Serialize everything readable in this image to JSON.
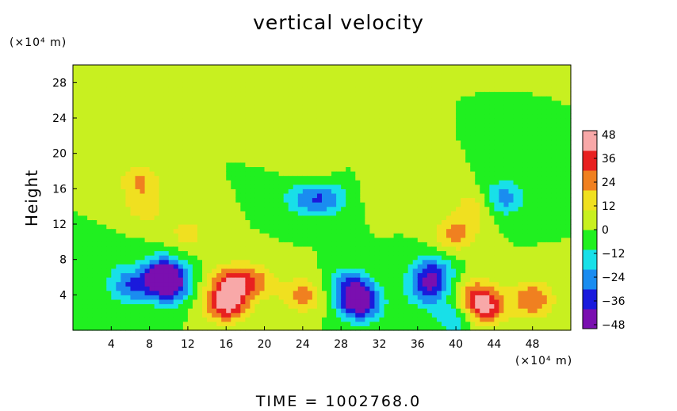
{
  "chart_data": {
    "type": "heatmap",
    "title": "vertical velocity",
    "xlabel": "",
    "ylabel": "Height",
    "x_unit": "(×10⁴ m)",
    "y_unit": "(×10⁴ m)",
    "xlim": [
      0,
      52
    ],
    "ylim": [
      0,
      30
    ],
    "xticks": [
      4,
      8,
      12,
      16,
      20,
      24,
      28,
      32,
      36,
      40,
      44,
      48
    ],
    "yticks": [
      4,
      8,
      12,
      16,
      20,
      24,
      28
    ],
    "colorbar": {
      "range": [
        -50,
        50
      ],
      "ticks": [
        48,
        36,
        24,
        12,
        0,
        -12,
        -24,
        -36,
        -48
      ],
      "colors": [
        "#7a0fb0",
        "#1a1adc",
        "#1a8cf0",
        "#18e0e8",
        "#20f020",
        "#c8f020",
        "#f0e020",
        "#f08020",
        "#e82020",
        "#f8a8a8"
      ]
    },
    "base_value": 0,
    "features": [
      {
        "x": 10,
        "y": 5,
        "value": -38
      },
      {
        "x": 9.5,
        "y": 6.5,
        "value": -40
      },
      {
        "x": 6,
        "y": 5,
        "value": -28
      },
      {
        "x": 30,
        "y": 3,
        "value": -44
      },
      {
        "x": 29,
        "y": 5,
        "value": -32
      },
      {
        "x": 37.5,
        "y": 6.5,
        "value": -32
      },
      {
        "x": 37,
        "y": 4.5,
        "value": -26
      },
      {
        "x": 16.5,
        "y": 5.5,
        "value": 30
      },
      {
        "x": 16,
        "y": 3,
        "value": 44
      },
      {
        "x": 19,
        "y": 5.5,
        "value": 22
      },
      {
        "x": 24,
        "y": 4,
        "value": 24
      },
      {
        "x": 43,
        "y": 2.5,
        "value": 36
      },
      {
        "x": 42,
        "y": 4,
        "value": 24
      },
      {
        "x": 48,
        "y": 3.5,
        "value": 30
      },
      {
        "x": 7,
        "y": 17,
        "value": 20
      },
      {
        "x": 7.5,
        "y": 14,
        "value": 16
      },
      {
        "x": 40,
        "y": 11,
        "value": 24
      },
      {
        "x": 42,
        "y": 14,
        "value": 16
      },
      {
        "x": 25,
        "y": 18,
        "value": 10
      },
      {
        "x": 26.5,
        "y": 15,
        "value": -24
      },
      {
        "x": 24,
        "y": 15,
        "value": -20
      },
      {
        "x": 45,
        "y": 15,
        "value": -26
      },
      {
        "x": 4,
        "y": 8,
        "value": -6
      },
      {
        "x": 40,
        "y": 1.5,
        "value": -20
      },
      {
        "x": 33,
        "y": 16,
        "value": 10
      },
      {
        "x": 12,
        "y": 11,
        "value": 14
      }
    ]
  },
  "footer": "TIME  =  1002768.0"
}
